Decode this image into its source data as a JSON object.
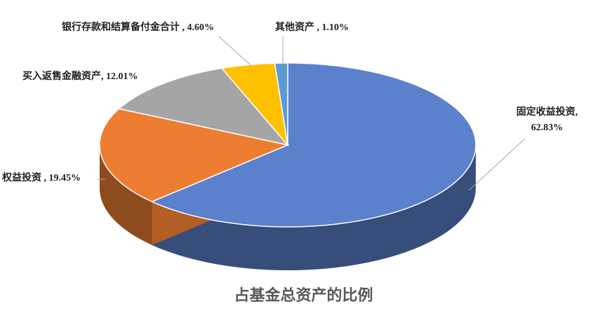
{
  "chart_data": {
    "type": "pie",
    "title": "占基金总资产的比例",
    "values": [
      62.83,
      19.45,
      12.01,
      4.6,
      1.1
    ],
    "value_labels": [
      "固定收益投资, 62.83%",
      "权益投资 , 19.45%",
      "买入返售金融资产, 12.01%",
      "银行存款和结算备付金合计 , 4.60%",
      "其他资产 , 1.10%"
    ],
    "colors": [
      "#5b80cc",
      "#ed7d31",
      "#a5a5a5",
      "#ffc000",
      "#5b9bd5"
    ]
  }
}
